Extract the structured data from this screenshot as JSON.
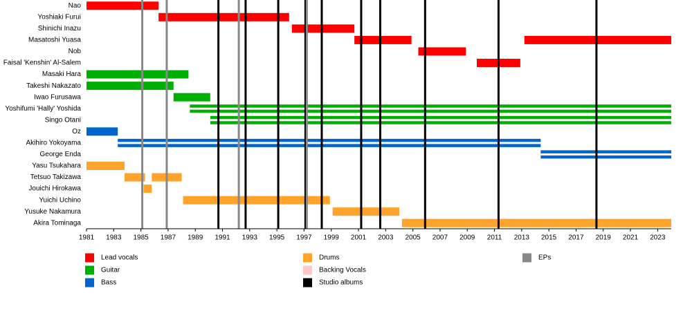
{
  "chart_data": {
    "type": "timeline",
    "xlim": [
      1981,
      2024
    ],
    "xticks": [
      1981,
      1983,
      1985,
      1987,
      1989,
      1991,
      1993,
      1995,
      1997,
      1999,
      2001,
      2003,
      2005,
      2007,
      2009,
      2011,
      2013,
      2015,
      2017,
      2019,
      2021,
      2023
    ],
    "roles": [
      {
        "name": "Lead vocals",
        "color": "#ff0000",
        "members": [
          {
            "name": "Nao",
            "bars": [
              [
                1981,
                1986.3
              ]
            ]
          },
          {
            "name": "Yoshiaki Furui",
            "bars": [
              [
                1986.3,
                1995.9
              ]
            ]
          },
          {
            "name": "Shinichi Inazu",
            "bars": [
              [
                1996.1,
                2000.7
              ]
            ]
          },
          {
            "name": "Masatoshi Yuasa",
            "bars": [
              [
                2000.7,
                2004.9
              ],
              [
                2013.2,
                2024
              ]
            ]
          },
          {
            "name": "Nob",
            "bars": [
              [
                2005.4,
                2008.9
              ]
            ]
          },
          {
            "name": "Faisal 'Kenshin' Al-Salem",
            "bars": [
              [
                2009.7,
                2012.9
              ]
            ]
          }
        ]
      },
      {
        "name": "Guitar",
        "color": "#00b000",
        "members": [
          {
            "name": "Masaki Hara",
            "bars": [
              [
                1981,
                1988.5
              ]
            ]
          },
          {
            "name": "Takeshi Nakazato",
            "bars": [
              [
                1981,
                1987.4
              ]
            ]
          },
          {
            "name": "Iwao Furusawa",
            "bars": [
              [
                1987.4,
                1990.1
              ]
            ]
          },
          {
            "name": "Yoshifumi 'Hally' Yoshida",
            "bars": [
              [
                1988.6,
                2024
              ]
            ],
            "striped": true
          },
          {
            "name": "Singo Otani",
            "bars": [
              [
                1990.1,
                2024
              ]
            ],
            "striped": true
          }
        ]
      },
      {
        "name": "Bass",
        "color": "#0066cc",
        "members": [
          {
            "name": "Oz",
            "bars": [
              [
                1981,
                1983.3
              ]
            ]
          },
          {
            "name": "Akihiro Yokoyama",
            "bars": [
              [
                1983.3,
                2014.4
              ]
            ],
            "striped": true
          },
          {
            "name": "George Enda",
            "bars": [
              [
                2014.4,
                2024
              ]
            ],
            "striped": true
          }
        ]
      },
      {
        "name": "Drums",
        "color": "#ffa32a",
        "members": [
          {
            "name": "Yasu Tsukahara",
            "bars": [
              [
                1981,
                1983.8
              ]
            ]
          },
          {
            "name": "Tetsuo Takizawa",
            "bars": [
              [
                1983.8,
                1985.3
              ],
              [
                1985.8,
                1988.0
              ]
            ]
          },
          {
            "name": "Jouichi Hirokawa",
            "bars": [
              [
                1985.2,
                1985.8
              ]
            ]
          },
          {
            "name": "Yuichi Uchino",
            "bars": [
              [
                1988.1,
                1998.9
              ]
            ]
          },
          {
            "name": "Yusuke Nakamura",
            "bars": [
              [
                1999.1,
                2004.0
              ]
            ]
          },
          {
            "name": "Akira Tominaga",
            "bars": [
              [
                2004.2,
                2024
              ]
            ]
          }
        ]
      },
      {
        "name": "Backing Vocals",
        "color": "#ffc8c8",
        "members": []
      }
    ],
    "series": [
      {
        "name": "Studio albums",
        "color": "#000000",
        "values": [
          1990.7,
          1992.7,
          1995.1,
          1997.1,
          1998.3,
          2001.2,
          2002.6,
          2005.9,
          2011.3,
          2018.5
        ]
      },
      {
        "name": "EPs",
        "color": "#888888",
        "values": [
          1985.1,
          1986.9,
          1992.2,
          1997.2
        ]
      }
    ]
  }
}
